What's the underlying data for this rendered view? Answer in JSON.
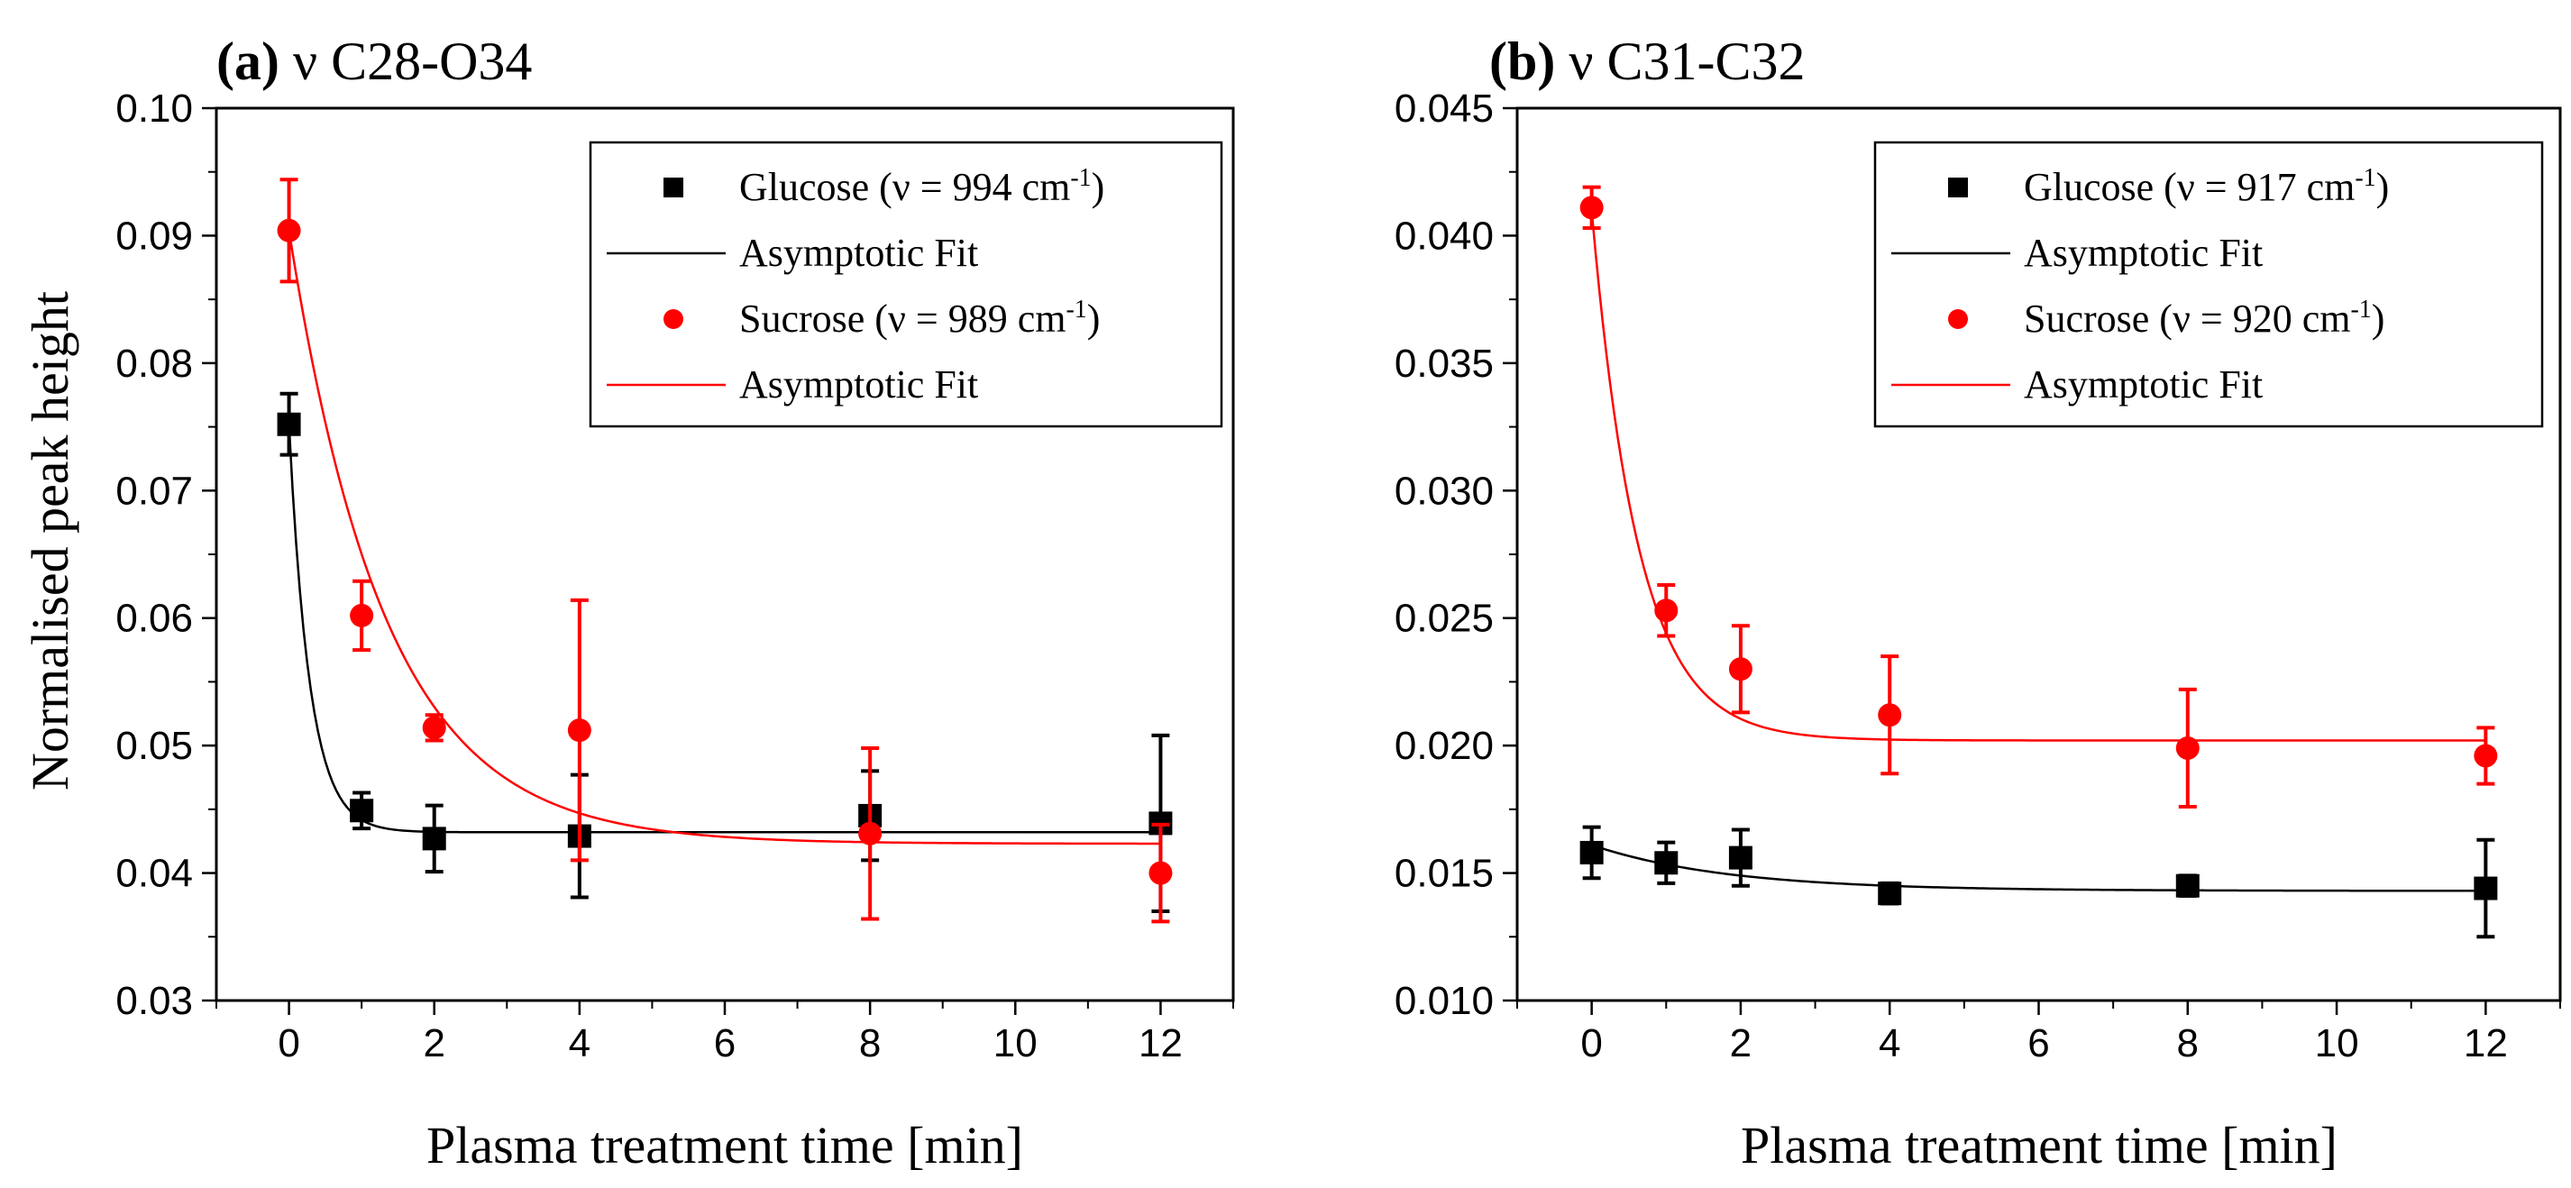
{
  "figure": {
    "ylabel": "Normalised peak height",
    "xlabel": "Plasma treatment time [min]"
  },
  "chart_data": [
    {
      "type": "scatter",
      "panel_label": "(a)",
      "title": "ν C28-O34",
      "xlabel": "Plasma treatment time [min]",
      "ylabel": "Normalised peak height",
      "xlim": [
        -1,
        13
      ],
      "ylim": [
        0.03,
        0.1
      ],
      "xticks": [
        0,
        2,
        4,
        6,
        8,
        10,
        12
      ],
      "yticks": [
        0.03,
        0.04,
        0.05,
        0.06,
        0.07,
        0.08,
        0.09,
        0.1
      ],
      "ytick_labels": [
        "0.03",
        "0.04",
        "0.05",
        "0.06",
        "0.07",
        "0.08",
        "0.09",
        "0.10"
      ],
      "legend_position": "top-right",
      "series": [
        {
          "name": "Glucose",
          "legend_label_prefix": "Glucose (",
          "legend_nu": "ν",
          "legend_value": " = 994 cm",
          "legend_sup": "-1",
          "legend_suffix": ")",
          "marker": "square",
          "color": "#000000",
          "x": [
            0,
            1,
            2,
            4,
            8,
            12
          ],
          "y": [
            0.0752,
            0.0449,
            0.0427,
            0.0429,
            0.0445,
            0.0439
          ],
          "err": [
            0.0024,
            0.0014,
            0.0026,
            0.0048,
            0.0035,
            0.0069
          ]
        },
        {
          "name": "Sucrose",
          "legend_label_prefix": "Sucrose (",
          "legend_nu": "ν",
          "legend_value": " = 989 cm",
          "legend_sup": "-1",
          "legend_suffix": ")",
          "marker": "circle",
          "color": "#ff0000",
          "x": [
            0,
            1,
            2,
            4,
            8,
            12
          ],
          "y": [
            0.0904,
            0.0602,
            0.0514,
            0.0512,
            0.0431,
            0.04
          ],
          "err": [
            0.004,
            0.0027,
            0.001,
            0.0102,
            0.0067,
            0.0038
          ]
        }
      ],
      "fits": [
        {
          "name": "Asymptotic Fit",
          "color": "#000000",
          "y0": 0.0752,
          "asymptote": 0.0432,
          "rate": 3.5
        },
        {
          "name": "Asymptotic Fit",
          "color": "#ff0000",
          "y0": 0.0904,
          "asymptote": 0.0423,
          "rate": 0.75
        }
      ]
    },
    {
      "type": "scatter",
      "panel_label": "(b)",
      "title": "ν C31-C32",
      "xlabel": "Plasma treatment time [min]",
      "ylabel": "",
      "xlim": [
        -1,
        13
      ],
      "ylim": [
        0.01,
        0.045
      ],
      "xticks": [
        0,
        2,
        4,
        6,
        8,
        10,
        12
      ],
      "yticks": [
        0.01,
        0.015,
        0.02,
        0.025,
        0.03,
        0.035,
        0.04,
        0.045
      ],
      "ytick_labels": [
        "0.010",
        "0.015",
        "0.020",
        "0.025",
        "0.030",
        "0.035",
        "0.040",
        "0.045"
      ],
      "legend_position": "top-right",
      "series": [
        {
          "name": "Glucose",
          "legend_label_prefix": "Glucose (",
          "legend_nu": "ν",
          "legend_value": " = 917 cm",
          "legend_sup": "-1",
          "legend_suffix": ")",
          "marker": "square",
          "color": "#000000",
          "x": [
            0,
            1,
            2,
            4,
            8,
            12
          ],
          "y": [
            0.0158,
            0.0154,
            0.0156,
            0.0142,
            0.0145,
            0.0144
          ],
          "err": [
            0.001,
            0.0008,
            0.0011,
            0.0004,
            0.0004,
            0.0019
          ]
        },
        {
          "name": "Sucrose",
          "legend_label_prefix": "Sucrose (",
          "legend_nu": "ν",
          "legend_value": " = 920 cm",
          "legend_sup": "-1",
          "legend_suffix": ")",
          "marker": "circle",
          "color": "#ff0000",
          "x": [
            0,
            1,
            2,
            4,
            8,
            12
          ],
          "y": [
            0.0411,
            0.0253,
            0.023,
            0.0212,
            0.0199,
            0.0196
          ],
          "err": [
            0.0008,
            0.001,
            0.0017,
            0.0023,
            0.0023,
            0.0011
          ]
        }
      ],
      "fits": [
        {
          "name": "Asymptotic Fit",
          "color": "#000000",
          "y0": 0.0161,
          "asymptote": 0.0143,
          "rate": 0.55
        },
        {
          "name": "Asymptotic Fit",
          "color": "#ff0000",
          "y0": 0.041,
          "asymptote": 0.0202,
          "rate": 1.6
        }
      ]
    }
  ]
}
